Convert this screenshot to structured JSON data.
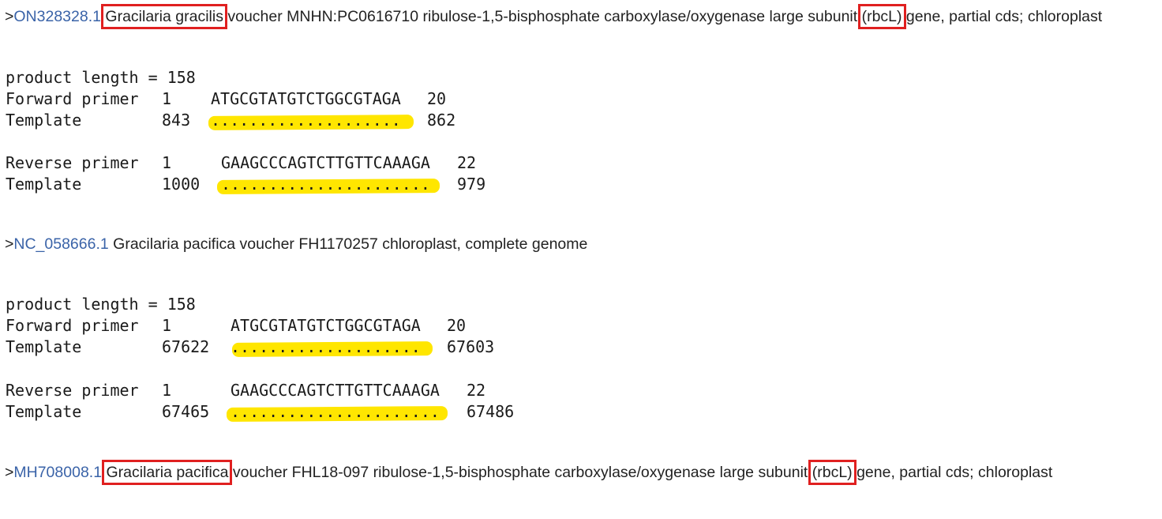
{
  "hits": [
    {
      "accession": "ON328328.1",
      "species": "Gracilaria gracilis",
      "desc_mid": " voucher MNHN:PC0616710 ribulose-1,5-bisphosphate carboxylase/oxygenase large subunit ",
      "gene": "(rbcL)",
      "desc_end": " gene, partial cds; chloroplast",
      "product_length": "product length = 158",
      "forward": {
        "label": "Forward primer",
        "start": "1",
        "seq": "ATGCGTATGTCTGGCGTAGA",
        "end": "20",
        "tmpl_label": "Template",
        "tmpl_start": "843",
        "tmpl_dots": "....................",
        "tmpl_end": "862"
      },
      "reverse": {
        "label": "Reverse primer",
        "start": "1",
        "seq": "GAAGCCCAGTCTTGTTCAAAGA",
        "end": "22",
        "tmpl_label": "Template",
        "tmpl_start": "1000",
        "tmpl_dots": "......................",
        "tmpl_end": "979"
      }
    },
    {
      "accession": "NC_058666.1",
      "description": " Gracilaria pacifica voucher FH1170257 chloroplast, complete genome",
      "product_length": "product length = 158",
      "forward": {
        "label": "Forward primer",
        "start": "1",
        "seq": "ATGCGTATGTCTGGCGTAGA",
        "end": "20",
        "tmpl_label": "Template",
        "tmpl_start": "67622",
        "tmpl_dots": "....................",
        "tmpl_end": "67603"
      },
      "reverse": {
        "label": "Reverse primer",
        "start": "1",
        "seq": "GAAGCCCAGTCTTGTTCAAAGA",
        "end": "22",
        "tmpl_label": "Template",
        "tmpl_start": "67465",
        "tmpl_dots": "......................",
        "tmpl_end": "67486"
      }
    },
    {
      "accession": "MH708008.1",
      "species": "Gracilaria pacifica",
      "desc_mid": " voucher FHL18-097 ribulose-1,5-bisphosphate carboxylase/oxygenase large subunit ",
      "gene": "(rbcL)",
      "desc_end": " gene, partial cds; chloroplast"
    }
  ],
  "prefix": ">",
  "colors": {
    "link": "#3a63a8",
    "box": "#e02020",
    "highlight": "#ffe600"
  }
}
